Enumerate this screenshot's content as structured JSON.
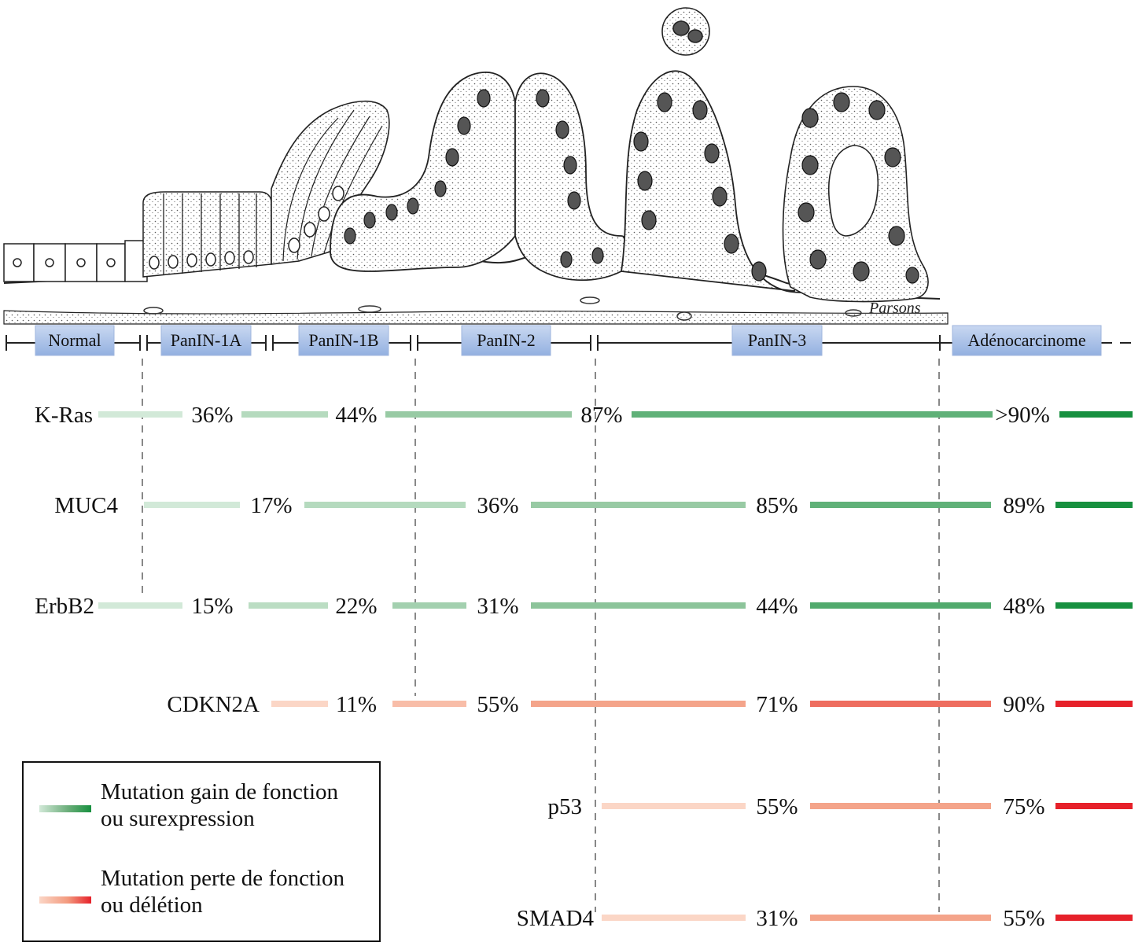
{
  "signature": "Parsons",
  "stages": [
    "Normal",
    "PanIN-1A",
    "PanIN-1B",
    "PanIN-2",
    "PanIN-3",
    "Adénocarcinome"
  ],
  "genes": [
    {
      "name": "K-Ras",
      "type": "gain",
      "values": [
        "36%",
        "44%",
        "87%",
        ">90%"
      ]
    },
    {
      "name": "MUC4",
      "type": "gain",
      "values": [
        "17%",
        "36%",
        "85%",
        "89%"
      ]
    },
    {
      "name": "ErbB2",
      "type": "gain",
      "values": [
        "15%",
        "22%",
        "31%",
        "44%",
        "48%"
      ]
    },
    {
      "name": "CDKN2A",
      "type": "loss",
      "values": [
        "11%",
        "55%",
        "71%",
        "90%"
      ]
    },
    {
      "name": "p53",
      "type": "loss",
      "values": [
        "55%",
        "75%"
      ]
    },
    {
      "name": "SMAD4",
      "type": "loss",
      "values": [
        "31%",
        "55%"
      ]
    }
  ],
  "legend": {
    "gain_line1": "Mutation gain de fonction",
    "gain_line2": "ou surexpression",
    "loss_line1": "Mutation perte de fonction",
    "loss_line2": "ou délétion"
  },
  "colors": {
    "gain_light": "#d2e9d8",
    "gain_mid": "#8cc49a",
    "gain_dark": "#17903f",
    "loss_light": "#fbd6c6",
    "loss_mid": "#f39a7e",
    "loss_dark": "#e6212a",
    "stage_box": "#a9c1e8"
  }
}
